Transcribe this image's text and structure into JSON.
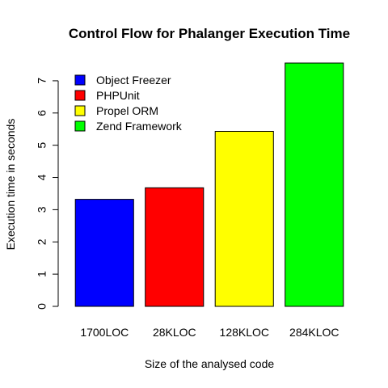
{
  "chart_data": {
    "type": "bar",
    "title": "Control Flow for Phalanger Execution Time",
    "xlabel": "Size of the analysed code",
    "ylabel": "Execution time in seconds",
    "categories": [
      "1700LOC",
      "28KLOC",
      "128KLOC",
      "284KLOC"
    ],
    "values": [
      3.32,
      3.68,
      5.43,
      7.55
    ],
    "colors": [
      "#0000ff",
      "#ff0000",
      "#ffff00",
      "#00ff00"
    ],
    "ylim": [
      0,
      7.55
    ],
    "yticks": [
      0,
      1,
      2,
      3,
      4,
      5,
      6,
      7
    ],
    "grid": false,
    "legend": {
      "position": "top-left",
      "entries": [
        {
          "label": "Object Freezer",
          "color": "#0000ff"
        },
        {
          "label": "PHPUnit",
          "color": "#ff0000"
        },
        {
          "label": "Propel ORM",
          "color": "#ffff00"
        },
        {
          "label": "Zend Framework",
          "color": "#00ff00"
        }
      ]
    }
  }
}
